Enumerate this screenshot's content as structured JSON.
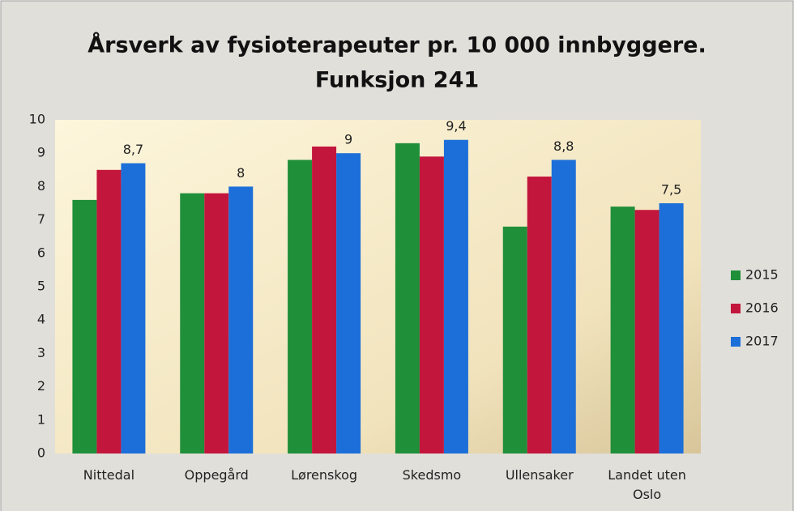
{
  "chart_data": {
    "type": "bar",
    "title": "Årsverk av fysioterapeuter pr. 10 000 innbyggere.",
    "subtitle": "Funksjon 241",
    "categories": [
      "Nittedal",
      "Oppegård",
      "Lørenskog",
      "Skedsmo",
      "Ullensaker",
      "Landet uten Oslo"
    ],
    "series": [
      {
        "name": "2015",
        "color": "#1f8f3a",
        "values": [
          7.6,
          7.8,
          8.8,
          9.3,
          6.8,
          7.4
        ]
      },
      {
        "name": "2016",
        "color": "#c3163d",
        "values": [
          8.5,
          7.8,
          9.2,
          8.9,
          8.3,
          7.3
        ]
      },
      {
        "name": "2017",
        "color": "#1c6fd8",
        "values": [
          8.7,
          8,
          9,
          9.4,
          8.8,
          7.5
        ],
        "value_labels": [
          "8,7",
          "8",
          "9",
          "9,4",
          "8,8",
          "7,5"
        ]
      }
    ],
    "ylim": [
      0,
      10
    ],
    "yticks": [
      0,
      1,
      2,
      3,
      4,
      5,
      6,
      7,
      8,
      9,
      10
    ],
    "grid": false,
    "legend": "right"
  }
}
